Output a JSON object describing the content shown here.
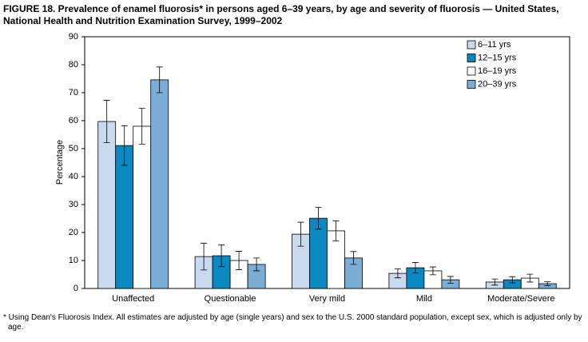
{
  "chart_data": {
    "type": "bar",
    "title": "FIGURE 18. Prevalence of enamel fluorosis* in persons aged 6–39 years, by age and severity of fluorosis — United States, National Health and Nutrition Examination Survey, 1999–2002",
    "y_label": "Percentage",
    "footnote": "* Using Dean's Fluorosis Index. All estimates are adjusted by age (single years) and sex to the U.S. 2000 standard population, except sex, which is adjusted only by age.",
    "categories": [
      "Unaffected",
      "Questionable",
      "Very mild",
      "Mild",
      "Moderate/Severe"
    ],
    "series": [
      {
        "name": "6–11 yrs",
        "color": "#c9d9ee",
        "values": [
          59.7,
          11.4,
          19.4,
          5.4,
          2.3
        ],
        "errors": [
          7.6,
          4.8,
          4.3,
          1.6,
          1.1
        ]
      },
      {
        "name": "12–15 yrs",
        "color": "#0a88c2",
        "values": [
          51.1,
          11.7,
          25.1,
          7.4,
          3.1
        ],
        "errors": [
          7.1,
          3.9,
          3.9,
          1.9,
          1.1
        ]
      },
      {
        "name": "16–19 yrs",
        "color": "#ffffff",
        "values": [
          58.0,
          10.0,
          20.6,
          6.3,
          3.7
        ],
        "errors": [
          6.4,
          3.3,
          3.6,
          1.4,
          1.4
        ]
      },
      {
        "name": "20–39 yrs",
        "color": "#7aaed6",
        "values": [
          74.6,
          8.6,
          10.9,
          3.1,
          1.7
        ],
        "errors": [
          4.6,
          2.3,
          2.3,
          1.2,
          0.7
        ]
      }
    ],
    "ylim": [
      0,
      90
    ],
    "yticks": [
      0,
      10,
      20,
      30,
      40,
      50,
      60,
      70,
      80,
      90
    ],
    "grid": false,
    "legend": "top-right"
  }
}
